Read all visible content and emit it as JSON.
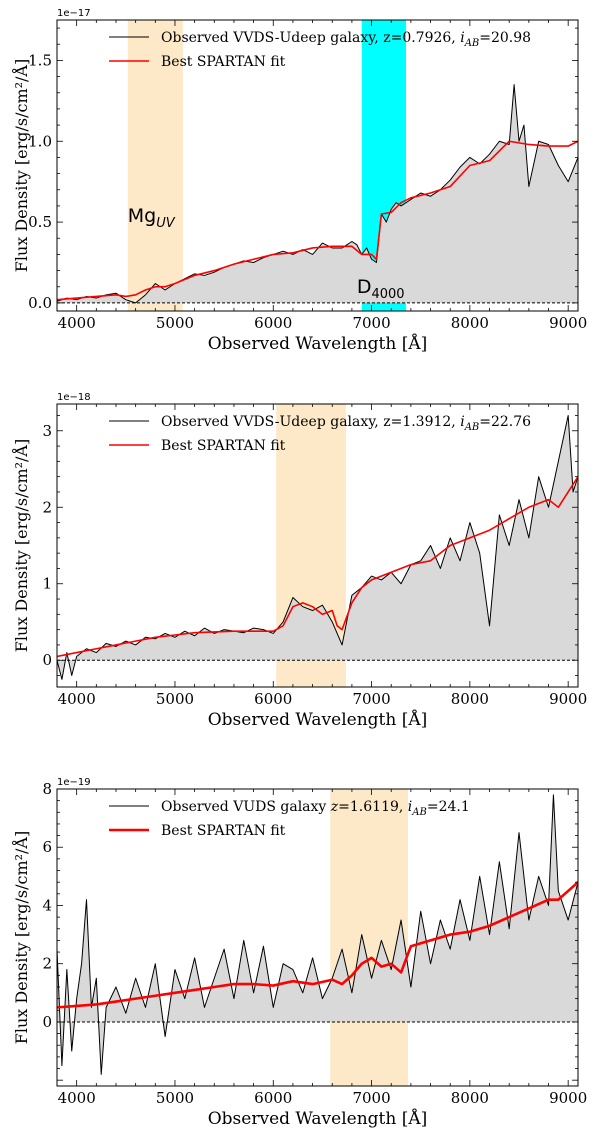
{
  "chart_data": [
    {
      "type": "line",
      "xlabel": "Observed Wavelength [Å]",
      "ylabel": "Flux Density [erg/s/cm²/Å]",
      "y_multiplier": "1e−17",
      "xlim": [
        3800,
        9100
      ],
      "ylim": [
        -0.05,
        1.75
      ],
      "xticks": [
        4000,
        5000,
        6000,
        7000,
        8000,
        9000
      ],
      "xtick_labels": [
        "4000",
        "5000",
        "6000",
        "7000",
        "8000",
        "9000"
      ],
      "yticks": [
        0.0,
        0.5,
        1.0,
        1.5
      ],
      "ytick_labels": [
        "0.0",
        "0.5",
        "1.0",
        "1.5"
      ],
      "grid": false,
      "legend_position": "top",
      "shaded_regions": [
        {
          "x0": 4520,
          "x1": 5080,
          "color": "#fde9c7"
        },
        {
          "x0": 6900,
          "x1": 7350,
          "color": "#00ffff"
        }
      ],
      "annotations": [
        {
          "text": "Mg",
          "sub": "UV",
          "x": 4520,
          "y": 0.5
        },
        {
          "text": "D",
          "sub": "4000",
          "x": 6850,
          "y": 0.06
        }
      ],
      "series": [
        {
          "name": "Observed VVDS-Udeep galaxy, z=0.7926, iAB=20.98",
          "legend": {
            "main": "Observed VVDS-Udeep galaxy, z=0.7926, ",
            "i": "i",
            "sub": "AB",
            "tail": "=20.98"
          },
          "color": "#000000",
          "width": 1.0,
          "fill": true,
          "x": [
            3800,
            3900,
            4000,
            4100,
            4200,
            4300,
            4400,
            4500,
            4600,
            4700,
            4800,
            4900,
            5000,
            5100,
            5200,
            5300,
            5400,
            5500,
            5600,
            5700,
            5800,
            5900,
            6000,
            6100,
            6200,
            6300,
            6400,
            6500,
            6600,
            6700,
            6800,
            6850,
            6900,
            6950,
            7000,
            7050,
            7100,
            7150,
            7200,
            7250,
            7300,
            7400,
            7500,
            7600,
            7700,
            7800,
            7900,
            8000,
            8100,
            8200,
            8300,
            8400,
            8450,
            8500,
            8550,
            8600,
            8700,
            8800,
            8900,
            9000,
            9100
          ],
          "y": [
            0.01,
            0.03,
            0.02,
            0.04,
            0.03,
            0.05,
            0.06,
            0.02,
            0.0,
            0.05,
            0.12,
            0.08,
            0.12,
            0.15,
            0.18,
            0.17,
            0.19,
            0.22,
            0.24,
            0.26,
            0.25,
            0.28,
            0.3,
            0.32,
            0.3,
            0.33,
            0.3,
            0.37,
            0.34,
            0.34,
            0.38,
            0.36,
            0.3,
            0.34,
            0.27,
            0.25,
            0.55,
            0.5,
            0.58,
            0.62,
            0.6,
            0.64,
            0.68,
            0.66,
            0.7,
            0.76,
            0.84,
            0.9,
            0.86,
            0.92,
            1.0,
            0.98,
            1.35,
            1.0,
            1.1,
            0.72,
            1.0,
            0.98,
            0.85,
            0.75,
            0.9
          ]
        },
        {
          "name": "Best SPARTAN fit",
          "color": "#ff0000",
          "width": 1.6,
          "fill": false,
          "x": [
            3800,
            4000,
            4200,
            4400,
            4500,
            4600,
            4700,
            4800,
            4900,
            5000,
            5200,
            5400,
            5600,
            5800,
            6000,
            6200,
            6400,
            6600,
            6800,
            6900,
            7000,
            7050,
            7100,
            7200,
            7300,
            7400,
            7600,
            7800,
            8000,
            8200,
            8400,
            8600,
            8800,
            9000,
            9100
          ],
          "y": [
            0.02,
            0.03,
            0.04,
            0.05,
            0.04,
            0.05,
            0.08,
            0.1,
            0.1,
            0.12,
            0.17,
            0.2,
            0.24,
            0.27,
            0.3,
            0.31,
            0.34,
            0.35,
            0.35,
            0.3,
            0.3,
            0.27,
            0.55,
            0.56,
            0.62,
            0.65,
            0.68,
            0.72,
            0.85,
            0.88,
            1.0,
            0.98,
            0.97,
            0.97,
            1.0
          ]
        }
      ]
    },
    {
      "type": "line",
      "xlabel": "Observed Wavelength [Å]",
      "ylabel": "Flux Density [erg/s/cm²/Å]",
      "y_multiplier": "1e−18",
      "xlim": [
        3800,
        9100
      ],
      "ylim": [
        -0.35,
        3.35
      ],
      "xticks": [
        4000,
        5000,
        6000,
        7000,
        8000,
        9000
      ],
      "xtick_labels": [
        "4000",
        "5000",
        "6000",
        "7000",
        "8000",
        "9000"
      ],
      "yticks": [
        0,
        1,
        2,
        3
      ],
      "ytick_labels": [
        "0",
        "1",
        "2",
        "3"
      ],
      "grid": false,
      "legend_position": "top",
      "shaded_regions": [
        {
          "x0": 6030,
          "x1": 6740,
          "color": "#fde9c7"
        }
      ],
      "annotations": [],
      "series": [
        {
          "name": "Observed VVDS-Udeep galaxy, z=1.3912, iAB=22.76",
          "legend": {
            "main": "Observed VVDS-Udeep galaxy, z=1.3912, ",
            "i": "i",
            "sub": "AB",
            "tail": "=22.76"
          },
          "color": "#000000",
          "width": 1.0,
          "fill": true,
          "x": [
            3800,
            3850,
            3900,
            3950,
            4000,
            4100,
            4200,
            4300,
            4400,
            4500,
            4600,
            4700,
            4800,
            4900,
            5000,
            5100,
            5200,
            5300,
            5400,
            5500,
            5600,
            5700,
            5800,
            5900,
            6000,
            6100,
            6200,
            6300,
            6400,
            6500,
            6600,
            6700,
            6800,
            6900,
            7000,
            7100,
            7200,
            7300,
            7400,
            7500,
            7600,
            7700,
            7800,
            7900,
            8000,
            8100,
            8200,
            8300,
            8400,
            8500,
            8600,
            8700,
            8800,
            8900,
            9000,
            9050,
            9100
          ],
          "y": [
            0.0,
            -0.25,
            0.1,
            -0.2,
            0.05,
            0.15,
            0.1,
            0.22,
            0.18,
            0.25,
            0.2,
            0.3,
            0.28,
            0.35,
            0.3,
            0.38,
            0.32,
            0.42,
            0.35,
            0.4,
            0.38,
            0.36,
            0.42,
            0.4,
            0.35,
            0.5,
            0.82,
            0.7,
            0.65,
            0.72,
            0.5,
            0.2,
            0.85,
            0.95,
            1.1,
            1.05,
            1.15,
            1.0,
            1.25,
            1.3,
            1.5,
            1.2,
            1.6,
            1.3,
            1.8,
            1.4,
            0.45,
            1.9,
            1.5,
            2.1,
            1.6,
            2.4,
            2.0,
            2.6,
            3.2,
            2.2,
            2.4
          ]
        },
        {
          "name": "Best SPARTAN fit",
          "color": "#ff0000",
          "width": 1.6,
          "fill": false,
          "x": [
            3800,
            4000,
            4200,
            4400,
            4600,
            4800,
            5000,
            5200,
            5400,
            5600,
            5800,
            6000,
            6100,
            6200,
            6300,
            6400,
            6500,
            6600,
            6650,
            6700,
            6800,
            6900,
            7000,
            7200,
            7400,
            7600,
            7800,
            8000,
            8200,
            8400,
            8600,
            8800,
            8900,
            9000,
            9100
          ],
          "y": [
            0.05,
            0.1,
            0.15,
            0.2,
            0.25,
            0.3,
            0.33,
            0.36,
            0.37,
            0.38,
            0.38,
            0.38,
            0.45,
            0.7,
            0.75,
            0.7,
            0.6,
            0.65,
            0.45,
            0.4,
            0.75,
            0.95,
            1.05,
            1.15,
            1.25,
            1.3,
            1.5,
            1.6,
            1.7,
            1.85,
            2.0,
            2.1,
            2.0,
            2.2,
            2.4
          ]
        }
      ]
    },
    {
      "type": "line",
      "xlabel": "Observed Wavelength [Å]",
      "ylabel": "Flux Density [erg/s/cm²/Å]",
      "y_multiplier": "1e−19",
      "xlim": [
        3800,
        9100
      ],
      "ylim": [
        -2.2,
        8.0
      ],
      "xticks": [
        4000,
        5000,
        6000,
        7000,
        8000,
        9000
      ],
      "xtick_labels": [
        "4000",
        "5000",
        "6000",
        "7000",
        "8000",
        "9000"
      ],
      "yticks": [
        0,
        2,
        4,
        6,
        8
      ],
      "ytick_labels": [
        "0",
        "2",
        "4",
        "6",
        "8"
      ],
      "grid": false,
      "legend_position": "top",
      "shaded_regions": [
        {
          "x0": 6580,
          "x1": 7370,
          "color": "#fde9c7"
        }
      ],
      "annotations": [],
      "series": [
        {
          "name": "Observed VUDS galaxy z=1.6119, iAB=24.1",
          "legend": {
            "main": "Observed VUDS galaxy ",
            "zpart": "z",
            "mid": "=1.6119, ",
            "i": "i",
            "sub": "AB",
            "tail": "=24.1"
          },
          "color": "#000000",
          "width": 1.0,
          "fill": true,
          "x": [
            3800,
            3850,
            3900,
            3950,
            4000,
            4050,
            4100,
            4150,
            4200,
            4250,
            4300,
            4400,
            4500,
            4600,
            4700,
            4800,
            4900,
            5000,
            5100,
            5200,
            5300,
            5400,
            5500,
            5600,
            5700,
            5800,
            5900,
            6000,
            6100,
            6200,
            6300,
            6400,
            6500,
            6600,
            6700,
            6800,
            6900,
            7000,
            7100,
            7200,
            7300,
            7400,
            7500,
            7600,
            7700,
            7800,
            7900,
            8000,
            8100,
            8200,
            8300,
            8400,
            8500,
            8600,
            8700,
            8800,
            8850,
            8900,
            9000,
            9100
          ],
          "y": [
            2.5,
            -1.5,
            1.8,
            -1.0,
            0.8,
            2.0,
            4.2,
            0.5,
            1.5,
            -1.8,
            0.5,
            1.2,
            0.3,
            1.5,
            0.5,
            2.0,
            -0.5,
            1.8,
            0.8,
            2.2,
            0.5,
            1.5,
            2.5,
            0.8,
            2.8,
            1.0,
            2.6,
            0.5,
            2.0,
            1.8,
            1.0,
            2.2,
            0.8,
            1.5,
            2.5,
            1.0,
            3.0,
            1.5,
            2.8,
            1.8,
            3.5,
            1.2,
            3.8,
            2.0,
            3.5,
            2.5,
            4.2,
            2.8,
            5.0,
            3.0,
            5.5,
            3.2,
            6.5,
            3.5,
            5.0,
            4.0,
            7.8,
            4.5,
            3.5,
            4.8
          ]
        },
        {
          "name": "Best SPARTAN fit",
          "color": "#ff0000",
          "width": 2.6,
          "fill": false,
          "x": [
            3800,
            4000,
            4200,
            4400,
            4600,
            4800,
            5000,
            5200,
            5400,
            5600,
            5800,
            6000,
            6200,
            6400,
            6600,
            6700,
            6800,
            6900,
            7000,
            7100,
            7200,
            7300,
            7400,
            7600,
            7800,
            8000,
            8200,
            8400,
            8600,
            8800,
            8900,
            9000,
            9100
          ],
          "y": [
            0.5,
            0.55,
            0.6,
            0.7,
            0.8,
            0.9,
            1.0,
            1.1,
            1.2,
            1.3,
            1.3,
            1.25,
            1.4,
            1.3,
            1.45,
            1.3,
            1.6,
            2.0,
            2.2,
            1.9,
            2.0,
            1.7,
            2.6,
            2.8,
            3.0,
            3.1,
            3.3,
            3.6,
            3.9,
            4.2,
            4.2,
            4.5,
            4.8
          ]
        }
      ]
    }
  ]
}
